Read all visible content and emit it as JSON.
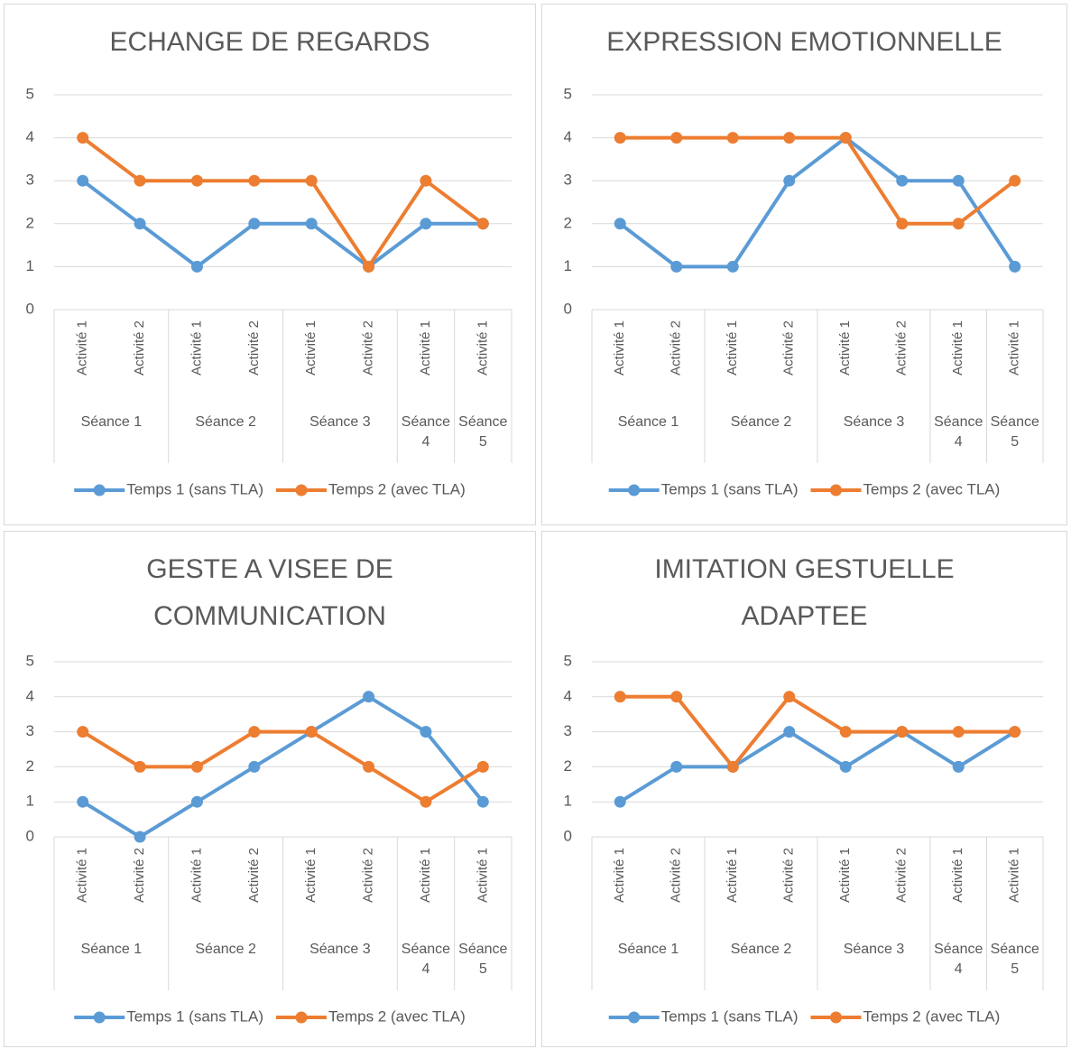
{
  "chart_data": [
    {
      "type": "line",
      "title": "ECHANGE DE REGARDS",
      "groups": [
        {
          "label": "Séance 1",
          "categories": [
            "Activité 1",
            "Activité 2"
          ]
        },
        {
          "label": "Séance 2",
          "categories": [
            "Activité 1",
            "Activité 2"
          ]
        },
        {
          "label": "Séance 3",
          "categories": [
            "Activité 1",
            "Activité 2"
          ]
        },
        {
          "label": "Séance 4",
          "categories": [
            "Activité 1"
          ]
        },
        {
          "label": "Séance 5",
          "categories": [
            "Activité 1"
          ]
        }
      ],
      "series": [
        {
          "name": "Temps 1 (sans TLA)",
          "color": "#5b9bd5",
          "values": [
            3,
            2,
            1,
            2,
            2,
            1,
            2,
            2
          ]
        },
        {
          "name": "Temps 2 (avec TLA)",
          "color": "#ed7d31",
          "values": [
            4,
            3,
            3,
            3,
            3,
            1,
            3,
            2
          ]
        }
      ],
      "ylim": [
        0,
        5
      ],
      "yticks": [
        0,
        1,
        2,
        3,
        4,
        5
      ],
      "grid": true,
      "legend": "bottom"
    },
    {
      "type": "line",
      "title": "EXPRESSION EMOTIONNELLE",
      "groups": [
        {
          "label": "Séance 1",
          "categories": [
            "Activité 1",
            "Activité 2"
          ]
        },
        {
          "label": "Séance 2",
          "categories": [
            "Activité 1",
            "Activité 2"
          ]
        },
        {
          "label": "Séance 3",
          "categories": [
            "Activité 1",
            "Activité 2"
          ]
        },
        {
          "label": "Séance 4",
          "categories": [
            "Activité 1"
          ]
        },
        {
          "label": "Séance 5",
          "categories": [
            "Activité 1"
          ]
        }
      ],
      "series": [
        {
          "name": "Temps 1 (sans TLA)",
          "color": "#5b9bd5",
          "values": [
            2,
            1,
            1,
            3,
            4,
            3,
            3,
            1
          ]
        },
        {
          "name": "Temps 2 (avec TLA)",
          "color": "#ed7d31",
          "values": [
            4,
            4,
            4,
            4,
            4,
            2,
            2,
            3
          ]
        }
      ],
      "ylim": [
        0,
        5
      ],
      "yticks": [
        0,
        1,
        2,
        3,
        4,
        5
      ],
      "grid": true,
      "legend": "bottom"
    },
    {
      "type": "line",
      "title": "GESTE A VISEE DE COMMUNICATION",
      "groups": [
        {
          "label": "Séance 1",
          "categories": [
            "Activité 1",
            "Activité 2"
          ]
        },
        {
          "label": "Séance 2",
          "categories": [
            "Activité 1",
            "Activité 2"
          ]
        },
        {
          "label": "Séance 3",
          "categories": [
            "Activité 1",
            "Activité 2"
          ]
        },
        {
          "label": "Séance 4",
          "categories": [
            "Activité 1"
          ]
        },
        {
          "label": "Séance 5",
          "categories": [
            "Activité 1"
          ]
        }
      ],
      "series": [
        {
          "name": "Temps 1 (sans TLA)",
          "color": "#5b9bd5",
          "values": [
            1,
            0,
            1,
            2,
            3,
            4,
            3,
            1
          ]
        },
        {
          "name": "Temps 2 (avec TLA)",
          "color": "#ed7d31",
          "values": [
            3,
            2,
            2,
            3,
            3,
            2,
            1,
            2
          ]
        }
      ],
      "ylim": [
        0,
        5
      ],
      "yticks": [
        0,
        1,
        2,
        3,
        4,
        5
      ],
      "grid": true,
      "legend": "bottom"
    },
    {
      "type": "line",
      "title": "IMITATION GESTUELLE ADAPTEE",
      "groups": [
        {
          "label": "Séance 1",
          "categories": [
            "Activité 1",
            "Activité 2"
          ]
        },
        {
          "label": "Séance 2",
          "categories": [
            "Activité 1",
            "Activité 2"
          ]
        },
        {
          "label": "Séance 3",
          "categories": [
            "Activité 1",
            "Activité 2"
          ]
        },
        {
          "label": "Séance 4",
          "categories": [
            "Activité 1"
          ]
        },
        {
          "label": "Séance 5",
          "categories": [
            "Activité 1"
          ]
        }
      ],
      "series": [
        {
          "name": "Temps 1 (sans TLA)",
          "color": "#5b9bd5",
          "values": [
            1,
            2,
            2,
            3,
            2,
            3,
            2,
            3
          ]
        },
        {
          "name": "Temps 2 (avec TLA)",
          "color": "#ed7d31",
          "values": [
            4,
            4,
            2,
            4,
            3,
            3,
            3,
            3
          ]
        }
      ],
      "ylim": [
        0,
        5
      ],
      "yticks": [
        0,
        1,
        2,
        3,
        4,
        5
      ],
      "grid": true,
      "legend": "bottom"
    }
  ]
}
